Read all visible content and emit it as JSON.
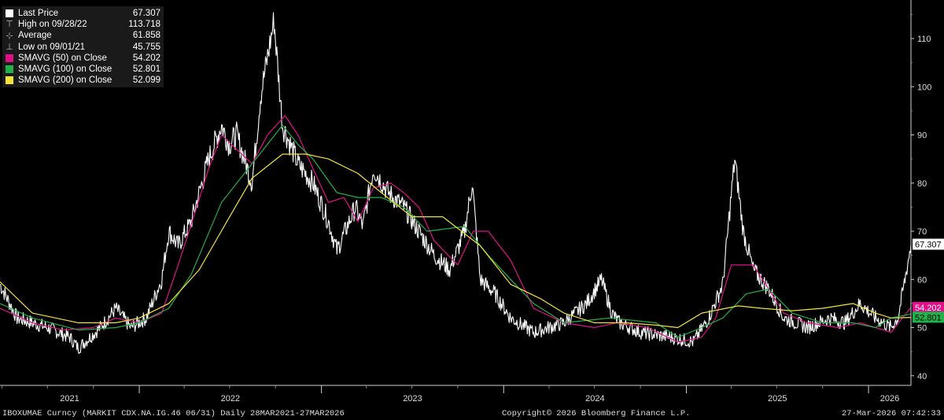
{
  "chart_data": {
    "type": "line",
    "ylim": [
      38,
      118
    ],
    "y_ticks": [
      40,
      50,
      60,
      70,
      80,
      90,
      100,
      110
    ],
    "x_labels": [
      "2021",
      "2022",
      "2023",
      "2024",
      "2025",
      "2026"
    ],
    "x_range": [
      "2021-03-28",
      "2026-03-27"
    ],
    "grid": "off",
    "legend": "top-left",
    "series": [
      {
        "name": "Last Price",
        "color": "#ffffff",
        "x": [
          "2021-03-28",
          "2021-05-01",
          "2021-07-01",
          "2021-08-15",
          "2021-09-01",
          "2021-10-15",
          "2021-11-15",
          "2021-12-15",
          "2022-01-15",
          "2022-02-15",
          "2022-03-01",
          "2022-03-20",
          "2022-04-15",
          "2022-05-20",
          "2022-06-15",
          "2022-06-30",
          "2022-07-15",
          "2022-08-15",
          "2022-09-01",
          "2022-09-28",
          "2022-10-15",
          "2022-11-15",
          "2022-12-15",
          "2023-01-15",
          "2023-02-01",
          "2023-03-10",
          "2023-03-25",
          "2023-04-15",
          "2023-05-15",
          "2023-06-15",
          "2023-07-15",
          "2023-08-15",
          "2023-09-15",
          "2023-10-15",
          "2023-10-30",
          "2023-11-15",
          "2023-12-15",
          "2024-01-15",
          "2024-03-01",
          "2024-05-01",
          "2024-06-15",
          "2024-07-15",
          "2024-08-05",
          "2024-08-20",
          "2024-10-01",
          "2024-12-01",
          "2025-01-15",
          "2025-02-15",
          "2025-03-15",
          "2025-04-08",
          "2025-04-25",
          "2025-05-15",
          "2025-06-15",
          "2025-07-15",
          "2025-09-01",
          "2025-10-15",
          "2025-11-15",
          "2025-12-15",
          "2026-01-15",
          "2026-02-15",
          "2026-03-01",
          "2026-03-15",
          "2026-03-27"
        ],
        "y": [
          59,
          52,
          50,
          48,
          45.755,
          50,
          54,
          50,
          52,
          60,
          70,
          67,
          72,
          85,
          92,
          88,
          90,
          80,
          98,
          113.718,
          92,
          84,
          80,
          72,
          66,
          75,
          71,
          83,
          78,
          75,
          70,
          65,
          62,
          70,
          80,
          60,
          57,
          52,
          49,
          51,
          55,
          60,
          53,
          51,
          49,
          48,
          47,
          52,
          59,
          85,
          70,
          62,
          58,
          52,
          50,
          52,
          51,
          55,
          52,
          50,
          52,
          60,
          67.307
        ]
      },
      {
        "name": "SMAVG (50)  on Close",
        "color": "#e0108a",
        "x": [
          "2021-03-28",
          "2021-06-01",
          "2021-08-01",
          "2021-10-01",
          "2021-11-15",
          "2022-01-01",
          "2022-02-15",
          "2022-03-20",
          "2022-04-20",
          "2022-05-20",
          "2022-06-15",
          "2022-07-15",
          "2022-08-15",
          "2022-09-15",
          "2022-10-20",
          "2022-11-15",
          "2022-12-15",
          "2023-01-15",
          "2023-02-15",
          "2023-03-15",
          "2023-04-15",
          "2023-05-20",
          "2023-06-15",
          "2023-07-15",
          "2023-08-15",
          "2023-10-01",
          "2023-11-01",
          "2023-12-01",
          "2024-01-15",
          "2024-03-01",
          "2024-05-01",
          "2024-07-01",
          "2024-08-15",
          "2024-10-15",
          "2024-12-15",
          "2025-02-01",
          "2025-03-01",
          "2025-04-01",
          "2025-05-15",
          "2025-06-15",
          "2025-07-15",
          "2025-09-01",
          "2025-11-01",
          "2025-12-15",
          "2026-01-15",
          "2026-02-15",
          "2026-03-27"
        ],
        "y": [
          54,
          51,
          49.5,
          50,
          52,
          51,
          53,
          63,
          73,
          83,
          90,
          87,
          84,
          90,
          94,
          90,
          83,
          76,
          77,
          72,
          79,
          80,
          78,
          75,
          68,
          63,
          70,
          70,
          64,
          54,
          51,
          50,
          51,
          50,
          47,
          48,
          52,
          63,
          63,
          58,
          53,
          51,
          50,
          51,
          50,
          49,
          54.202
        ]
      },
      {
        "name": "SMAVG (100)  on Close",
        "color": "#22b04a",
        "x": [
          "2021-03-28",
          "2021-06-01",
          "2021-09-01",
          "2021-11-15",
          "2022-01-01",
          "2022-03-01",
          "2022-04-15",
          "2022-06-15",
          "2022-08-15",
          "2022-10-15",
          "2022-11-15",
          "2022-12-15",
          "2023-02-01",
          "2023-03-15",
          "2023-05-01",
          "2023-06-15",
          "2023-08-01",
          "2023-10-15",
          "2023-12-01",
          "2024-01-15",
          "2024-03-01",
          "2024-05-01",
          "2024-08-01",
          "2024-11-01",
          "2024-12-15",
          "2025-02-01",
          "2025-03-15",
          "2025-05-01",
          "2025-06-15",
          "2025-08-01",
          "2025-10-01",
          "2025-12-01",
          "2026-01-15",
          "2026-02-15",
          "2026-03-27"
        ],
        "y": [
          55,
          52,
          49.5,
          50,
          51,
          54,
          61,
          76,
          84,
          92,
          88,
          85,
          78,
          77,
          77,
          75,
          70,
          71,
          65,
          60,
          55,
          51,
          52,
          51,
          48,
          50,
          52,
          57,
          58,
          53,
          51,
          51,
          50,
          52,
          52.801
        ]
      },
      {
        "name": "SMAVG (200)  on Close",
        "color": "#f2e23a",
        "x": [
          "2021-03-28",
          "2021-06-01",
          "2021-09-01",
          "2021-11-15",
          "2022-01-01",
          "2022-03-01",
          "2022-05-01",
          "2022-07-01",
          "2022-08-15",
          "2022-10-15",
          "2022-12-01",
          "2023-01-15",
          "2023-03-15",
          "2023-05-01",
          "2023-07-01",
          "2023-09-01",
          "2023-11-15",
          "2024-01-15",
          "2024-03-15",
          "2024-05-01",
          "2024-07-01",
          "2024-09-01",
          "2024-11-01",
          "2024-12-15",
          "2025-02-01",
          "2025-04-15",
          "2025-06-01",
          "2025-08-01",
          "2025-10-01",
          "2025-12-01",
          "2026-01-15",
          "2026-02-15",
          "2026-03-27"
        ],
        "y": [
          59.5,
          53,
          51,
          51,
          52,
          55,
          62,
          73,
          81,
          86,
          86,
          85,
          82,
          78,
          73,
          73,
          67,
          59,
          56,
          53,
          51,
          51,
          50.5,
          50,
          53,
          54.5,
          54,
          53.5,
          54,
          55,
          53,
          52,
          52.099
        ]
      }
    ],
    "legend_entries": [
      {
        "label": "Last Price",
        "value": "67.307",
        "marker": "square",
        "color": "#ffffff"
      },
      {
        "label": "High on 09/28/22",
        "value": "113.718",
        "marker": "high-icon",
        "color": "#bbbbbb"
      },
      {
        "label": "Average",
        "value": "61.858",
        "marker": "average-icon",
        "color": "#bbbbbb"
      },
      {
        "label": "Low on 09/01/21",
        "value": "45.755",
        "marker": "low-icon",
        "color": "#bbbbbb"
      },
      {
        "label": "SMAVG (50)  on Close",
        "value": "54.202",
        "marker": "square",
        "color": "#e0108a"
      },
      {
        "label": "SMAVG (100)  on Close",
        "value": "52.801",
        "marker": "square",
        "color": "#22b04a"
      },
      {
        "label": "SMAVG (200)  on Close",
        "value": "52.099",
        "marker": "square",
        "color": "#f2e23a"
      }
    ],
    "price_tags": [
      {
        "value": "67.307",
        "at": 67.307,
        "bg": "#ffffff",
        "fg": "#000000"
      },
      {
        "value": "54.202",
        "at": 54.202,
        "bg": "#e0108a",
        "fg": "#ffffff"
      },
      {
        "value": "52.801",
        "at": 52.801,
        "bg": "#22b04a",
        "fg": "#000000"
      }
    ]
  },
  "footer": {
    "left": "IBOXUMAE Curncy (MARKIT CDX.NA.IG.46 06/31) Daily 28MAR2021-27MAR2026",
    "center": "Copyright© 2026 Bloomberg Finance L.P.",
    "right": "27-Mar-2026 07:42:33"
  }
}
